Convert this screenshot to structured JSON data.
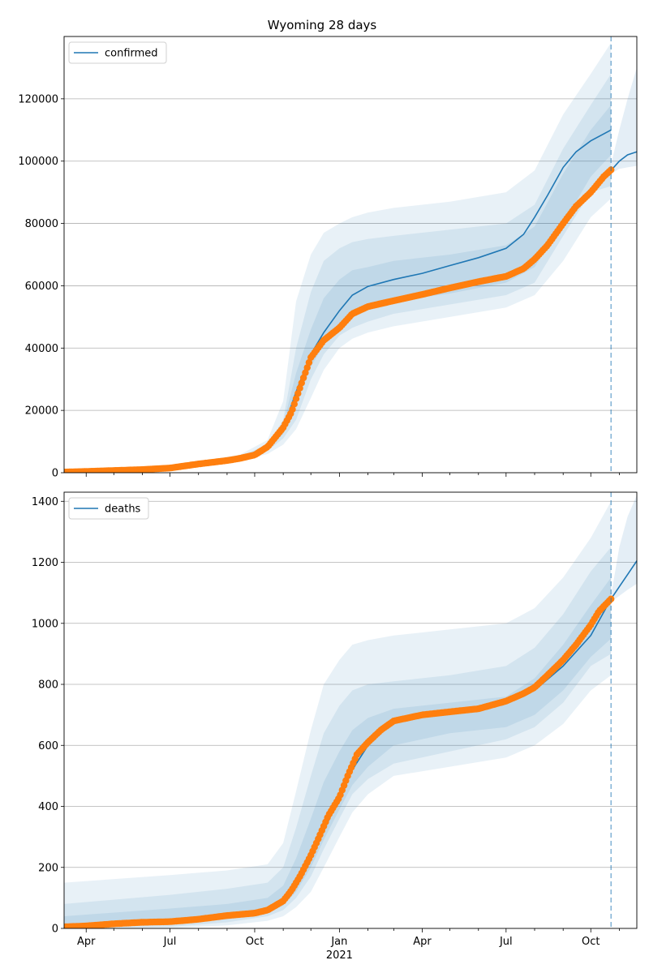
{
  "title": "Wyoming 28 days",
  "x_axis": {
    "tick_labels": [
      "Apr",
      "Jul",
      "Oct",
      "Jan",
      "Apr",
      "Jul",
      "Oct"
    ],
    "tick_dates": [
      "2020-04-01",
      "2020-07-01",
      "2020-10-01",
      "2021-01-01",
      "2021-04-01",
      "2021-07-01",
      "2021-10-01"
    ],
    "year_label": "2021",
    "range": [
      "2020-03-08",
      "2021-11-20"
    ],
    "forecast_start": "2021-10-23"
  },
  "colors": {
    "line": "#1f77b4",
    "observed": "#ff7f0e",
    "band": "#1f77b4",
    "grid": "#b0b0b0"
  },
  "chart_data": [
    {
      "type": "line",
      "panel": "confirmed",
      "legend": "confirmed",
      "legend_position": "top-left",
      "grid": "horizontal",
      "ylim": [
        0,
        140000
      ],
      "yticks": [
        0,
        20000,
        40000,
        60000,
        80000,
        100000,
        120000
      ],
      "ytick_labels": [
        "0",
        "20000",
        "40000",
        "60000",
        "80000",
        "100000",
        "120000"
      ],
      "model": {
        "x": [
          "2020-03-08",
          "2020-05-01",
          "2020-07-01",
          "2020-08-15",
          "2020-09-15",
          "2020-10-15",
          "2020-11-01",
          "2020-11-15",
          "2020-12-01",
          "2020-12-15",
          "2021-01-01",
          "2021-01-15",
          "2021-02-01",
          "2021-03-01",
          "2021-04-01",
          "2021-05-01",
          "2021-06-01",
          "2021-07-01",
          "2021-07-20",
          "2021-08-01",
          "2021-08-15",
          "2021-09-01",
          "2021-09-15",
          "2021-10-01",
          "2021-10-23"
        ],
        "y": [
          300,
          600,
          1400,
          3300,
          4800,
          8000,
          14000,
          26000,
          38000,
          45000,
          52000,
          57000,
          59800,
          62000,
          64000,
          66500,
          69000,
          72000,
          76500,
          82000,
          89000,
          98000,
          103000,
          106500,
          110000
        ]
      },
      "forecast": {
        "x": [
          "2021-10-23",
          "2021-11-01",
          "2021-11-10",
          "2021-11-20"
        ],
        "y": [
          97000,
          100000,
          102000,
          103000
        ],
        "band_outer": {
          "low": [
            96000,
            97500,
            98000,
            98500
          ],
          "high": [
            99000,
            110000,
            120000,
            130000
          ]
        }
      },
      "bands": {
        "x": [
          "2020-03-08",
          "2020-07-01",
          "2020-09-15",
          "2020-10-15",
          "2020-11-01",
          "2020-11-15",
          "2020-12-01",
          "2020-12-15",
          "2021-01-01",
          "2021-01-15",
          "2021-02-01",
          "2021-03-01",
          "2021-05-01",
          "2021-07-01",
          "2021-08-01",
          "2021-09-01",
          "2021-10-01",
          "2021-10-23"
        ],
        "outer_low": [
          0,
          1000,
          3800,
          6000,
          9000,
          14000,
          24000,
          33000,
          40000,
          43000,
          45000,
          47000,
          50000,
          53000,
          57000,
          68000,
          82000,
          88000
        ],
        "outer_high": [
          600,
          2000,
          5800,
          10500,
          23000,
          55000,
          70000,
          77000,
          80000,
          82000,
          83500,
          85000,
          87000,
          90000,
          97000,
          115000,
          128000,
          138000
        ],
        "inner_low": [
          100,
          1200,
          4300,
          7000,
          11000,
          17000,
          30000,
          38000,
          44000,
          46500,
          48500,
          51000,
          54000,
          57000,
          61000,
          76000,
          90000,
          92000
        ],
        "inner_high": [
          500,
          1700,
          5300,
          9000,
          17000,
          40000,
          58000,
          68000,
          72000,
          74000,
          75000,
          76000,
          78000,
          80000,
          86000,
          104000,
          118000,
          128000
        ],
        "core_low": [
          200,
          1300,
          4500,
          7500,
          12500,
          22000,
          34000,
          41000,
          47000,
          50000,
          53000,
          55000,
          57500,
          61000,
          66000,
          80000,
          95000,
          102000
        ],
        "core_high": [
          450,
          1600,
          5100,
          8600,
          15500,
          32000,
          46000,
          56000,
          62000,
          65000,
          66000,
          68000,
          70000,
          73000,
          79000,
          96000,
          110000,
          118000
        ]
      },
      "observed": {
        "x": [
          "2020-03-08",
          "2020-04-01",
          "2020-05-01",
          "2020-06-01",
          "2020-07-01",
          "2020-08-01",
          "2020-09-01",
          "2020-09-15",
          "2020-10-01",
          "2020-10-15",
          "2020-11-01",
          "2020-11-10",
          "2020-11-20",
          "2020-12-01",
          "2020-12-15",
          "2021-01-01",
          "2021-01-15",
          "2021-02-01",
          "2021-03-01",
          "2021-04-01",
          "2021-05-01",
          "2021-06-01",
          "2021-07-01",
          "2021-07-20",
          "2021-08-01",
          "2021-08-15",
          "2021-09-01",
          "2021-09-15",
          "2021-10-01",
          "2021-10-15",
          "2021-10-23"
        ],
        "y": [
          200,
          400,
          700,
          1000,
          1500,
          2800,
          3900,
          4600,
          5700,
          8300,
          14500,
          19500,
          28000,
          37000,
          42500,
          46500,
          51000,
          53300,
          55200,
          57200,
          59300,
          61300,
          63000,
          65500,
          68500,
          73000,
          80000,
          85500,
          90000,
          95000,
          97200
        ]
      }
    },
    {
      "type": "line",
      "panel": "deaths",
      "legend": "deaths",
      "legend_position": "top-left",
      "grid": "horizontal",
      "ylim": [
        0,
        1430
      ],
      "yticks": [
        0,
        200,
        400,
        600,
        800,
        1000,
        1200,
        1400
      ],
      "ytick_labels": [
        "0",
        "200",
        "400",
        "600",
        "800",
        "1000",
        "1200",
        "1400"
      ],
      "model": {
        "x": [
          "2020-03-08",
          "2020-05-01",
          "2020-07-01",
          "2020-09-01",
          "2020-10-15",
          "2020-11-01",
          "2020-11-15",
          "2020-12-01",
          "2020-12-15",
          "2021-01-01",
          "2021-01-15",
          "2021-02-01",
          "2021-03-01",
          "2021-04-01",
          "2021-05-01",
          "2021-06-01",
          "2021-07-01",
          "2021-08-01",
          "2021-09-01",
          "2021-10-01",
          "2021-10-23"
        ],
        "y": [
          5,
          12,
          25,
          45,
          65,
          95,
          145,
          230,
          320,
          430,
          520,
          600,
          680,
          700,
          710,
          718,
          740,
          780,
          860,
          960,
          1080
        ]
      },
      "forecast": {
        "x": [
          "2021-10-23",
          "2021-11-01",
          "2021-11-10",
          "2021-11-20"
        ],
        "y": [
          1080,
          1120,
          1160,
          1205
        ],
        "band_outer": {
          "low": [
            1070,
            1090,
            1110,
            1130
          ],
          "high": [
            1090,
            1250,
            1350,
            1420
          ]
        }
      },
      "bands": {
        "x": [
          "2020-03-08",
          "2020-07-01",
          "2020-09-01",
          "2020-10-15",
          "2020-11-01",
          "2020-11-15",
          "2020-12-01",
          "2020-12-15",
          "2021-01-01",
          "2021-01-15",
          "2021-02-01",
          "2021-03-01",
          "2021-05-01",
          "2021-07-01",
          "2021-08-01",
          "2021-09-01",
          "2021-10-01",
          "2021-10-23"
        ],
        "outer_low": [
          0,
          0,
          10,
          25,
          40,
          70,
          120,
          200,
          300,
          380,
          440,
          500,
          530,
          560,
          600,
          670,
          780,
          830
        ],
        "outer_high": [
          150,
          175,
          190,
          210,
          280,
          450,
          650,
          800,
          880,
          930,
          945,
          960,
          980,
          1000,
          1050,
          1150,
          1280,
          1400
        ],
        "inner_low": [
          0,
          5,
          20,
          40,
          60,
          100,
          170,
          260,
          360,
          440,
          490,
          540,
          580,
          620,
          660,
          740,
          860,
          900
        ],
        "inner_high": [
          80,
          110,
          130,
          150,
          200,
          330,
          500,
          640,
          730,
          780,
          800,
          810,
          830,
          860,
          920,
          1030,
          1170,
          1250
        ],
        "core_low": [
          2,
          12,
          30,
          50,
          75,
          120,
          200,
          290,
          390,
          470,
          530,
          600,
          640,
          660,
          700,
          780,
          890,
          950
        ],
        "core_high": [
          40,
          65,
          80,
          100,
          140,
          230,
          360,
          480,
          580,
          650,
          690,
          720,
          740,
          760,
          820,
          930,
          1060,
          1150
        ]
      },
      "observed": {
        "x": [
          "2020-03-08",
          "2020-04-01",
          "2020-05-01",
          "2020-06-01",
          "2020-07-01",
          "2020-08-01",
          "2020-09-01",
          "2020-10-01",
          "2020-10-15",
          "2020-11-01",
          "2020-11-10",
          "2020-11-20",
          "2020-12-01",
          "2020-12-10",
          "2020-12-20",
          "2021-01-01",
          "2021-01-10",
          "2021-01-20",
          "2021-02-01",
          "2021-02-15",
          "2021-03-01",
          "2021-04-01",
          "2021-05-01",
          "2021-06-01",
          "2021-07-01",
          "2021-07-20",
          "2021-08-01",
          "2021-08-15",
          "2021-09-01",
          "2021-09-15",
          "2021-10-01",
          "2021-10-10",
          "2021-10-23"
        ],
        "y": [
          5,
          8,
          15,
          20,
          22,
          30,
          42,
          50,
          60,
          90,
          125,
          175,
          240,
          300,
          370,
          430,
          500,
          570,
          610,
          650,
          680,
          700,
          710,
          720,
          745,
          770,
          790,
          830,
          880,
          930,
          995,
          1040,
          1080
        ]
      }
    }
  ]
}
